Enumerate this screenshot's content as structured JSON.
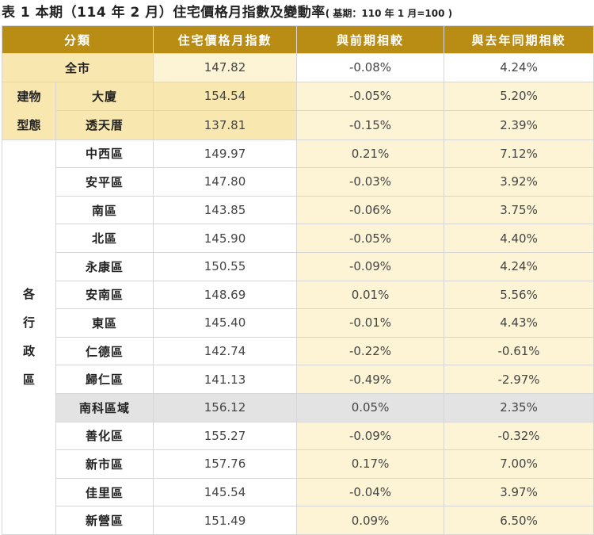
{
  "title": {
    "main": "表 1 本期（114 年 2 月）住宅價格月指數及變動率",
    "base": "( 基期：110 年 1 月=100 )"
  },
  "columns": [
    "分類",
    "住宅價格月指數",
    "與前期相較",
    "與去年同期相較"
  ],
  "total": {
    "label": "全市",
    "index": "147.82",
    "mom": "-0.08%",
    "yoy": "4.24%"
  },
  "building": {
    "group_chars": [
      "建物",
      "型態"
    ],
    "rows": [
      {
        "label": "大廈",
        "index": "154.54",
        "mom": "-0.05%",
        "yoy": "5.20%"
      },
      {
        "label": "透天厝",
        "index": "137.81",
        "mom": "-0.15%",
        "yoy": "2.39%"
      }
    ]
  },
  "districts": {
    "group_chars": [
      "各",
      "行",
      "政",
      "區"
    ],
    "rows": [
      {
        "label": "中西區",
        "index": "149.97",
        "mom": "0.21%",
        "yoy": "7.12%"
      },
      {
        "label": "安平區",
        "index": "147.80",
        "mom": "-0.03%",
        "yoy": "3.92%"
      },
      {
        "label": "南區",
        "index": "143.85",
        "mom": "-0.06%",
        "yoy": "3.75%"
      },
      {
        "label": "北區",
        "index": "145.90",
        "mom": "-0.05%",
        "yoy": "4.40%"
      },
      {
        "label": "永康區",
        "index": "150.55",
        "mom": "-0.09%",
        "yoy": "4.24%"
      },
      {
        "label": "安南區",
        "index": "148.69",
        "mom": "0.01%",
        "yoy": "5.56%"
      },
      {
        "label": "東區",
        "index": "145.40",
        "mom": "-0.01%",
        "yoy": "4.43%"
      },
      {
        "label": "仁德區",
        "index": "142.74",
        "mom": "-0.22%",
        "yoy": "-0.61%"
      },
      {
        "label": "歸仁區",
        "index": "141.13",
        "mom": "-0.49%",
        "yoy": "-2.97%"
      },
      {
        "label": "南科區域",
        "index": "156.12",
        "mom": "0.05%",
        "yoy": "2.35%",
        "highlight": true
      },
      {
        "label": "善化區",
        "index": "155.27",
        "mom": "-0.09%",
        "yoy": "-0.32%"
      },
      {
        "label": "新市區",
        "index": "157.76",
        "mom": "0.17%",
        "yoy": "7.00%"
      },
      {
        "label": "佳里區",
        "index": "145.54",
        "mom": "-0.04%",
        "yoy": "3.97%"
      },
      {
        "label": "新營區",
        "index": "151.49",
        "mom": "0.09%",
        "yoy": "6.50%"
      }
    ]
  }
}
